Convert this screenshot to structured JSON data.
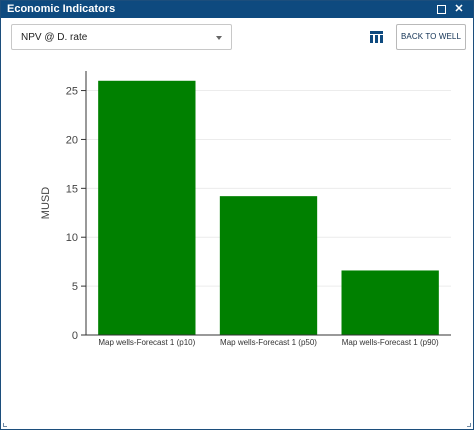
{
  "window": {
    "title": "Economic Indicators"
  },
  "controls": {
    "metric_select": {
      "value": "NPV @ D. rate"
    },
    "table_view_icon": "table-icon",
    "back_button_label": "BACK TO WELL"
  },
  "colors": {
    "titlebar": "#0e4a7f",
    "bar": "#008000",
    "icon": "#0e4a7f"
  },
  "chart_data": {
    "type": "bar",
    "categories": [
      "Map wells-Forecast 1 (p10)",
      "Map wells-Forecast 1 (p50)",
      "Map wells-Forecast 1 (p90)"
    ],
    "values": [
      26,
      14.2,
      6.6
    ],
    "title": "",
    "xlabel": "",
    "ylabel": "MUSD",
    "ylim": [
      0,
      27
    ],
    "yticks": [
      0,
      5,
      10,
      15,
      20,
      25
    ],
    "grid": true,
    "legend": "none"
  }
}
